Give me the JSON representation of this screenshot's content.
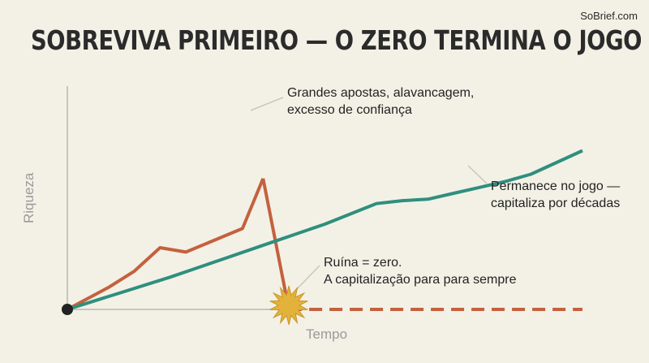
{
  "brand": "SoBrief.com",
  "title": "SOBREVIVA PRIMEIRO — O ZERO TERMINA O JOGO",
  "chart_data": {
    "type": "line",
    "xlabel": "Tempo",
    "ylabel": "Riqueza",
    "xlim": [
      0,
      100
    ],
    "ylim": [
      0,
      100
    ],
    "grid": false,
    "legend": "none",
    "series": [
      {
        "color": "#c4613e",
        "style": "solid",
        "x": [
          0,
          8,
          13,
          18,
          23,
          34,
          38
        ],
        "y": [
          0,
          15,
          26,
          42,
          39,
          55,
          89
        ]
      },
      {
        "color": "#c4613e",
        "style": "solid",
        "x": [
          38,
          43
        ],
        "y": [
          89,
          0
        ]
      },
      {
        "color": "#c4613e",
        "style": "dashed",
        "x": [
          43,
          100
        ],
        "y": [
          0,
          0
        ]
      },
      {
        "color": "#2f8f7e",
        "style": "solid",
        "x": [
          0,
          10,
          20,
          30,
          40,
          50,
          60,
          65,
          70,
          75,
          80,
          85,
          90,
          95,
          100
        ],
        "y": [
          0,
          11,
          22,
          34,
          46,
          58,
          72,
          74,
          75,
          79,
          83,
          87,
          92,
          100,
          108
        ]
      }
    ],
    "annotations": [
      "Grandes apostas, alavancagem,\nexcesso de confiança",
      "Permanece no jogo —\ncapitaliza por décadas",
      "Ruína = zero.\nA capitalização para para sempre"
    ],
    "markers": {
      "origin_color": "#222222",
      "ruin_burst_color": "#e2b23a"
    }
  }
}
